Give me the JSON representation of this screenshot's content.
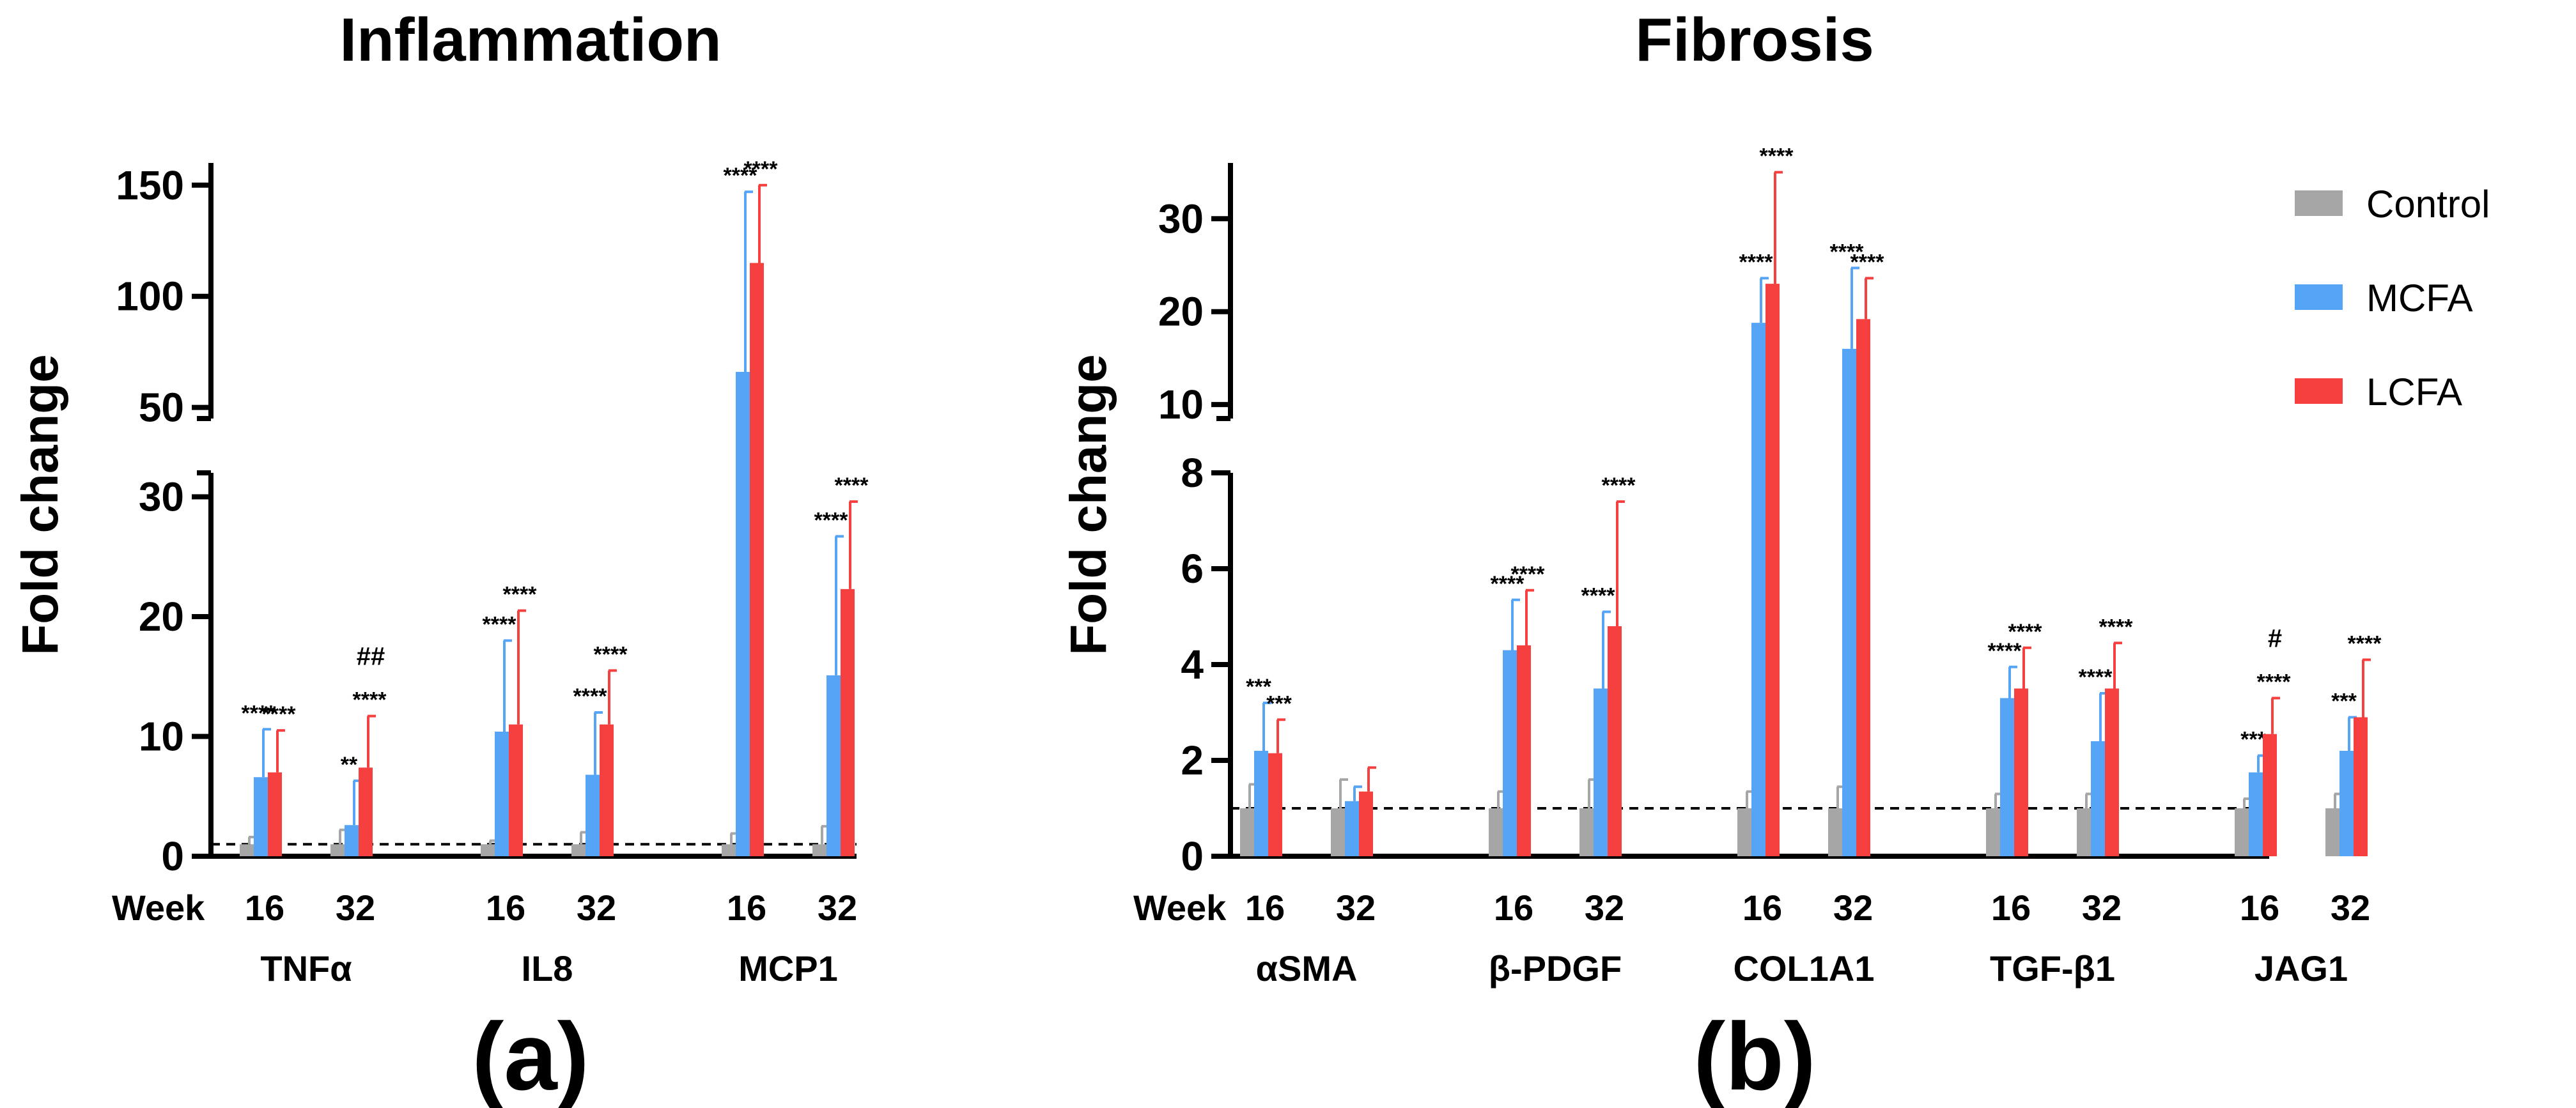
{
  "chart_data": [
    {
      "type": "bar",
      "title": "Inflammation",
      "panel_label": "(a)",
      "ylabel": "Fold change",
      "week_label": "Week",
      "broken_axis": {
        "lower": {
          "range": [
            0,
            32
          ],
          "ticks": [
            0,
            10,
            20,
            30
          ]
        },
        "upper": {
          "range": [
            45,
            160
          ],
          "ticks": [
            50,
            100,
            150
          ]
        }
      },
      "reference_line": 1,
      "series_names": [
        "Control",
        "MCFA",
        "LCFA"
      ],
      "groups": [
        {
          "gene": "TNFα",
          "timepoints": [
            {
              "week": "16",
              "bars": [
                {
                  "value": 1.0,
                  "error": 0.6
                },
                {
                  "value": 6.6,
                  "error": 4.0,
                  "label": "****"
                },
                {
                  "value": 7.0,
                  "error": 3.5,
                  "label": "****"
                }
              ]
            },
            {
              "week": "32",
              "bars": [
                {
                  "value": 1.0,
                  "error": 1.2
                },
                {
                  "value": 2.6,
                  "error": 3.7,
                  "label": "**"
                },
                {
                  "value": 7.4,
                  "error": 4.3,
                  "label": "****",
                  "label2": "##"
                }
              ]
            }
          ]
        },
        {
          "gene": "IL8",
          "timepoints": [
            {
              "week": "16",
              "bars": [
                {
                  "value": 1.0,
                  "error": 0.3
                },
                {
                  "value": 10.4,
                  "error": 7.6,
                  "label": "****"
                },
                {
                  "value": 11.0,
                  "error": 9.5,
                  "label": "****"
                }
              ]
            },
            {
              "week": "32",
              "bars": [
                {
                  "value": 1.0,
                  "error": 1.0
                },
                {
                  "value": 6.8,
                  "error": 5.2,
                  "label": "****"
                },
                {
                  "value": 11.0,
                  "error": 4.5,
                  "label": "****"
                }
              ]
            }
          ]
        },
        {
          "gene": "MCP1",
          "timepoints": [
            {
              "week": "16",
              "bars": [
                {
                  "value": 1.0,
                  "error": 0.9
                },
                {
                  "value": 66,
                  "error": 81,
                  "label": "****"
                },
                {
                  "value": 115,
                  "error": 35,
                  "label": "****"
                }
              ]
            },
            {
              "week": "32",
              "bars": [
                {
                  "value": 1.0,
                  "error": 1.5
                },
                {
                  "value": 15.1,
                  "error": 11.6,
                  "label": "****"
                },
                {
                  "value": 22.3,
                  "error": 7.3,
                  "label": "****"
                }
              ]
            }
          ]
        }
      ]
    },
    {
      "type": "bar",
      "title": "Fibrosis",
      "panel_label": "(b)",
      "ylabel": "Fold change",
      "week_label": "Week",
      "broken_axis": {
        "lower": {
          "range": [
            0,
            8
          ],
          "ticks": [
            0,
            2,
            4,
            6,
            8
          ]
        },
        "upper": {
          "range": [
            8.5,
            36
          ],
          "ticks": [
            10,
            20,
            30
          ]
        }
      },
      "reference_line": 1,
      "series_names": [
        "Control",
        "MCFA",
        "LCFA"
      ],
      "groups": [
        {
          "gene": "αSMA",
          "timepoints": [
            {
              "week": "16",
              "bars": [
                {
                  "value": 1.0,
                  "error": 0.5
                },
                {
                  "value": 2.2,
                  "error": 1.0,
                  "label": "***"
                },
                {
                  "value": 2.15,
                  "error": 0.7,
                  "label": "***"
                }
              ]
            },
            {
              "week": "32",
              "bars": [
                {
                  "value": 1.0,
                  "error": 0.6
                },
                {
                  "value": 1.15,
                  "error": 0.3
                },
                {
                  "value": 1.35,
                  "error": 0.5
                }
              ]
            }
          ]
        },
        {
          "gene": "β-PDGF",
          "timepoints": [
            {
              "week": "16",
              "bars": [
                {
                  "value": 1.0,
                  "error": 0.35
                },
                {
                  "value": 4.3,
                  "error": 1.05,
                  "label": "****"
                },
                {
                  "value": 4.4,
                  "error": 1.15,
                  "label": "****"
                }
              ]
            },
            {
              "week": "32",
              "bars": [
                {
                  "value": 1.0,
                  "error": 0.6
                },
                {
                  "value": 3.5,
                  "error": 1.6,
                  "label": "****"
                },
                {
                  "value": 4.8,
                  "error": 2.6,
                  "label": "****"
                }
              ]
            }
          ]
        },
        {
          "gene": "COL1A1",
          "timepoints": [
            {
              "week": "16",
              "bars": [
                {
                  "value": 1.0,
                  "error": 0.35
                },
                {
                  "value": 18.8,
                  "error": 4.8,
                  "label": "****"
                },
                {
                  "value": 23.0,
                  "error": 12.0,
                  "label": "****"
                }
              ]
            },
            {
              "week": "32",
              "bars": [
                {
                  "value": 1.0,
                  "error": 0.45
                },
                {
                  "value": 16.0,
                  "error": 8.7,
                  "label": "****"
                },
                {
                  "value": 19.2,
                  "error": 4.4,
                  "label": "****"
                }
              ]
            }
          ]
        },
        {
          "gene": "TGF-β1",
          "timepoints": [
            {
              "week": "16",
              "bars": [
                {
                  "value": 1.0,
                  "error": 0.3
                },
                {
                  "value": 3.3,
                  "error": 0.65,
                  "label": "****"
                },
                {
                  "value": 3.5,
                  "error": 0.85,
                  "label": "****"
                }
              ]
            },
            {
              "week": "32",
              "bars": [
                {
                  "value": 1.0,
                  "error": 0.3
                },
                {
                  "value": 2.4,
                  "error": 1.0,
                  "label": "****"
                },
                {
                  "value": 3.5,
                  "error": 0.95,
                  "label": "****"
                }
              ]
            }
          ]
        },
        {
          "gene": "JAG1",
          "timepoints": [
            {
              "week": "16",
              "bars": [
                {
                  "value": 1.0,
                  "error": 0.2
                },
                {
                  "value": 1.75,
                  "error": 0.35,
                  "label": "***"
                },
                {
                  "value": 2.55,
                  "error": 0.75,
                  "label": "****",
                  "label2": "#"
                }
              ]
            },
            {
              "week": "32",
              "bars": [
                {
                  "value": 1.0,
                  "error": 0.3
                },
                {
                  "value": 2.2,
                  "error": 0.7,
                  "label": "***"
                },
                {
                  "value": 2.9,
                  "error": 1.2,
                  "label": "****"
                }
              ]
            }
          ]
        }
      ]
    }
  ],
  "legend": {
    "items": [
      {
        "label": "Control",
        "color": "#a6a6a6"
      },
      {
        "label": "MCFA",
        "color": "#56a4f5"
      },
      {
        "label": "LCFA",
        "color": "#f5403f"
      }
    ]
  }
}
